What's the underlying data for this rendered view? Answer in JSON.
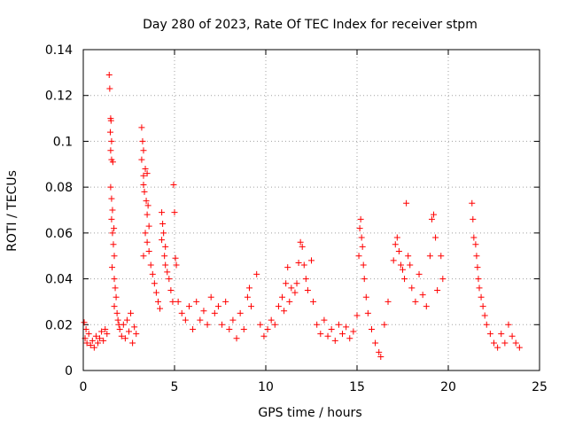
{
  "chart_data": {
    "type": "scatter",
    "title": "Day 280 of 2023, Rate Of TEC Index for receiver stpm",
    "xlabel": "GPS time / hours",
    "ylabel": "ROTI / TECUs",
    "xlim": [
      0,
      25
    ],
    "ylim": [
      0,
      0.14
    ],
    "xticks": [
      0,
      5,
      10,
      15,
      20,
      25
    ],
    "xtick_labels": [
      "0",
      "5",
      "10",
      "15",
      "20",
      "25"
    ],
    "yticks": [
      0,
      0.02,
      0.04,
      0.06,
      0.08,
      0.1,
      0.12,
      0.14
    ],
    "ytick_labels": [
      "0",
      "0.02",
      "0.04",
      "0.06",
      "0.08",
      "0.1",
      "0.12",
      "0.14"
    ],
    "grid": true,
    "marker": "plus",
    "color": "#ff0000",
    "series": [
      {
        "points": [
          [
            0.05,
            0.021
          ],
          [
            0.1,
            0.014
          ],
          [
            0.15,
            0.018
          ],
          [
            0.2,
            0.012
          ],
          [
            0.3,
            0.016
          ],
          [
            0.4,
            0.011
          ],
          [
            0.5,
            0.013
          ],
          [
            0.6,
            0.01
          ],
          [
            0.7,
            0.015
          ],
          [
            0.8,
            0.012
          ],
          [
            0.9,
            0.014
          ],
          [
            1.0,
            0.017
          ],
          [
            1.1,
            0.013
          ],
          [
            1.2,
            0.018
          ],
          [
            1.3,
            0.016
          ],
          [
            1.42,
            0.129
          ],
          [
            1.45,
            0.123
          ],
          [
            1.5,
            0.11
          ],
          [
            1.52,
            0.109
          ],
          [
            1.48,
            0.104
          ],
          [
            1.55,
            0.1
          ],
          [
            1.5,
            0.096
          ],
          [
            1.55,
            0.092
          ],
          [
            1.62,
            0.091
          ],
          [
            1.5,
            0.08
          ],
          [
            1.55,
            0.075
          ],
          [
            1.6,
            0.07
          ],
          [
            1.55,
            0.066
          ],
          [
            1.68,
            0.062
          ],
          [
            1.6,
            0.06
          ],
          [
            1.65,
            0.055
          ],
          [
            1.7,
            0.05
          ],
          [
            1.58,
            0.045
          ],
          [
            1.7,
            0.04
          ],
          [
            1.75,
            0.036
          ],
          [
            1.8,
            0.032
          ],
          [
            1.7,
            0.028
          ],
          [
            1.85,
            0.025
          ],
          [
            1.9,
            0.022
          ],
          [
            1.95,
            0.02
          ],
          [
            2.0,
            0.018
          ],
          [
            2.1,
            0.015
          ],
          [
            2.2,
            0.02
          ],
          [
            2.3,
            0.014
          ],
          [
            2.4,
            0.022
          ],
          [
            2.5,
            0.017
          ],
          [
            2.6,
            0.025
          ],
          [
            2.7,
            0.012
          ],
          [
            2.8,
            0.019
          ],
          [
            2.9,
            0.016
          ],
          [
            3.2,
            0.106
          ],
          [
            3.25,
            0.1
          ],
          [
            3.3,
            0.096
          ],
          [
            3.2,
            0.092
          ],
          [
            3.3,
            0.085
          ],
          [
            3.4,
            0.088
          ],
          [
            3.5,
            0.086
          ],
          [
            3.3,
            0.081
          ],
          [
            3.35,
            0.078
          ],
          [
            3.45,
            0.074
          ],
          [
            3.55,
            0.072
          ],
          [
            3.5,
            0.068
          ],
          [
            3.6,
            0.063
          ],
          [
            3.4,
            0.06
          ],
          [
            3.5,
            0.056
          ],
          [
            3.6,
            0.052
          ],
          [
            3.3,
            0.05
          ],
          [
            3.7,
            0.046
          ],
          [
            3.8,
            0.042
          ],
          [
            3.9,
            0.038
          ],
          [
            4.0,
            0.034
          ],
          [
            4.1,
            0.03
          ],
          [
            4.2,
            0.027
          ],
          [
            4.3,
            0.069
          ],
          [
            4.35,
            0.064
          ],
          [
            4.4,
            0.06
          ],
          [
            4.3,
            0.057
          ],
          [
            4.5,
            0.054
          ],
          [
            4.45,
            0.05
          ],
          [
            4.5,
            0.046
          ],
          [
            4.6,
            0.043
          ],
          [
            4.7,
            0.04
          ],
          [
            4.8,
            0.035
          ],
          [
            4.9,
            0.03
          ],
          [
            4.95,
            0.081
          ],
          [
            5.0,
            0.069
          ],
          [
            5.05,
            0.049
          ],
          [
            5.1,
            0.046
          ],
          [
            5.2,
            0.03
          ],
          [
            5.4,
            0.025
          ],
          [
            5.6,
            0.022
          ],
          [
            5.8,
            0.028
          ],
          [
            6.0,
            0.018
          ],
          [
            6.2,
            0.03
          ],
          [
            6.4,
            0.022
          ],
          [
            6.6,
            0.026
          ],
          [
            6.8,
            0.02
          ],
          [
            7.0,
            0.032
          ],
          [
            7.2,
            0.025
          ],
          [
            7.4,
            0.028
          ],
          [
            7.6,
            0.02
          ],
          [
            7.8,
            0.03
          ],
          [
            8.0,
            0.018
          ],
          [
            8.2,
            0.022
          ],
          [
            8.4,
            0.014
          ],
          [
            8.6,
            0.025
          ],
          [
            8.8,
            0.018
          ],
          [
            9.0,
            0.032
          ],
          [
            9.1,
            0.036
          ],
          [
            9.2,
            0.028
          ],
          [
            9.5,
            0.042
          ],
          [
            9.7,
            0.02
          ],
          [
            9.9,
            0.015
          ],
          [
            10.1,
            0.018
          ],
          [
            10.3,
            0.022
          ],
          [
            10.5,
            0.02
          ],
          [
            10.7,
            0.028
          ],
          [
            10.9,
            0.032
          ],
          [
            11.0,
            0.026
          ],
          [
            11.1,
            0.038
          ],
          [
            11.2,
            0.045
          ],
          [
            11.3,
            0.03
          ],
          [
            11.4,
            0.036
          ],
          [
            11.6,
            0.034
          ],
          [
            11.7,
            0.038
          ],
          [
            11.8,
            0.047
          ],
          [
            11.9,
            0.056
          ],
          [
            12.0,
            0.054
          ],
          [
            12.1,
            0.046
          ],
          [
            12.2,
            0.04
          ],
          [
            12.3,
            0.035
          ],
          [
            12.5,
            0.048
          ],
          [
            12.6,
            0.03
          ],
          [
            12.8,
            0.02
          ],
          [
            13.0,
            0.016
          ],
          [
            13.2,
            0.022
          ],
          [
            13.4,
            0.015
          ],
          [
            13.6,
            0.018
          ],
          [
            13.8,
            0.013
          ],
          [
            14.0,
            0.02
          ],
          [
            14.2,
            0.016
          ],
          [
            14.4,
            0.019
          ],
          [
            14.6,
            0.014
          ],
          [
            14.8,
            0.017
          ],
          [
            15.0,
            0.024
          ],
          [
            15.1,
            0.05
          ],
          [
            15.15,
            0.062
          ],
          [
            15.2,
            0.066
          ],
          [
            15.25,
            0.058
          ],
          [
            15.3,
            0.054
          ],
          [
            15.35,
            0.046
          ],
          [
            15.4,
            0.04
          ],
          [
            15.5,
            0.032
          ],
          [
            15.6,
            0.025
          ],
          [
            15.8,
            0.018
          ],
          [
            16.0,
            0.012
          ],
          [
            16.2,
            0.008
          ],
          [
            16.3,
            0.006
          ],
          [
            16.5,
            0.02
          ],
          [
            16.7,
            0.03
          ],
          [
            17.0,
            0.048
          ],
          [
            17.1,
            0.055
          ],
          [
            17.2,
            0.058
          ],
          [
            17.3,
            0.052
          ],
          [
            17.4,
            0.046
          ],
          [
            17.5,
            0.044
          ],
          [
            17.6,
            0.04
          ],
          [
            17.7,
            0.073
          ],
          [
            17.8,
            0.05
          ],
          [
            17.9,
            0.046
          ],
          [
            18.0,
            0.036
          ],
          [
            18.2,
            0.03
          ],
          [
            18.4,
            0.042
          ],
          [
            18.6,
            0.033
          ],
          [
            18.8,
            0.028
          ],
          [
            19.0,
            0.05
          ],
          [
            19.1,
            0.066
          ],
          [
            19.2,
            0.068
          ],
          [
            19.3,
            0.058
          ],
          [
            19.4,
            0.035
          ],
          [
            19.6,
            0.05
          ],
          [
            19.7,
            0.04
          ],
          [
            21.3,
            0.073
          ],
          [
            21.35,
            0.066
          ],
          [
            21.4,
            0.058
          ],
          [
            21.5,
            0.055
          ],
          [
            21.55,
            0.05
          ],
          [
            21.6,
            0.045
          ],
          [
            21.65,
            0.04
          ],
          [
            21.7,
            0.036
          ],
          [
            21.8,
            0.032
          ],
          [
            21.9,
            0.028
          ],
          [
            22.0,
            0.024
          ],
          [
            22.1,
            0.02
          ],
          [
            22.3,
            0.016
          ],
          [
            22.5,
            0.012
          ],
          [
            22.7,
            0.01
          ],
          [
            22.9,
            0.016
          ],
          [
            23.1,
            0.012
          ],
          [
            23.3,
            0.02
          ],
          [
            23.5,
            0.015
          ],
          [
            23.7,
            0.012
          ],
          [
            23.9,
            0.01
          ]
        ]
      }
    ]
  }
}
